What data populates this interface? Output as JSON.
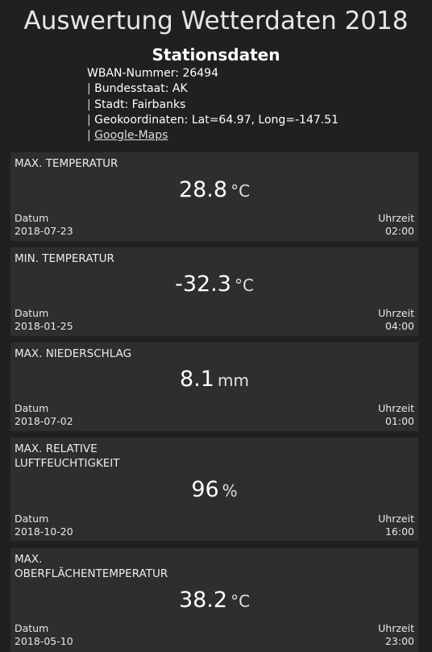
{
  "page": {
    "title": "Auswertung Wetterdaten 2018"
  },
  "station": {
    "title": "Stationsdaten",
    "wban": "WBAN-Nummer: 26494",
    "state": "Bundesstaat: AK",
    "city": "Stadt: Fairbanks",
    "coords": "Geokoordinaten:  Lat=64.97, Long=-147.51",
    "maps_link": "Google-Maps",
    "separator": "| "
  },
  "labels": {
    "date": "Datum",
    "time": "Uhrzeit"
  },
  "cards": [
    {
      "label": "MAX. TEMPERATUR",
      "value": "28.8",
      "unit": "°C",
      "date": "2018-07-23",
      "time": "02:00"
    },
    {
      "label": "MIN. TEMPERATUR",
      "value": "-32.3",
      "unit": "°C",
      "date": "2018-01-25",
      "time": "04:00"
    },
    {
      "label": "MAX. NIEDERSCHLAG",
      "value": "8.1",
      "unit": "mm",
      "date": "2018-07-02",
      "time": "01:00"
    },
    {
      "label": "MAX. RELATIVE\nLUFTFEUCHTIGKEIT",
      "value": "96",
      "unit": "%",
      "date": "2018-10-20",
      "time": "16:00"
    },
    {
      "label": "MAX.\nOBERFLÄCHENTEMPERATUR",
      "value": "38.2",
      "unit": "°C",
      "date": "2018-05-10",
      "time": "23:00"
    }
  ]
}
